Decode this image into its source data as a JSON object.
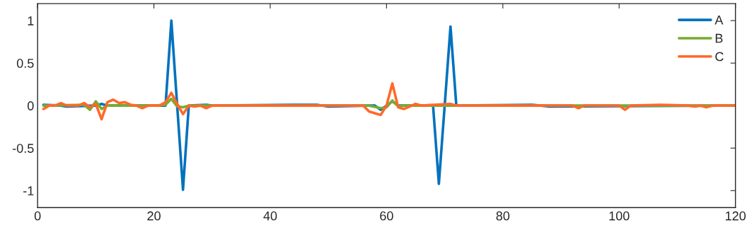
{
  "chart_data": {
    "type": "line",
    "xlim": [
      0,
      120
    ],
    "ylim": [
      -1.2,
      1.2
    ],
    "xticks": [
      0,
      20,
      40,
      60,
      80,
      100,
      120
    ],
    "yticks": [
      -1,
      -0.5,
      0,
      0.5,
      1
    ],
    "legend": "top right",
    "grid": false,
    "marker": "none",
    "line_style": "solid",
    "series": [
      {
        "name": "A",
        "color": "#0072bd",
        "x": [
          1,
          4,
          5,
          10,
          11,
          12,
          20,
          22,
          23,
          24,
          25,
          26,
          29,
          30,
          44,
          48,
          50,
          57,
          58,
          59,
          60,
          61,
          62,
          68,
          69,
          70,
          71,
          72,
          85,
          88,
          120
        ],
        "values": [
          0.01,
          0,
          -0.01,
          0,
          0.02,
          0,
          0,
          0,
          1,
          0,
          -0.99,
          0,
          0.01,
          0,
          0.01,
          0.01,
          -0.01,
          0,
          0,
          -0.05,
          0,
          0.05,
          0,
          0,
          -0.92,
          0,
          0.93,
          0,
          0.01,
          -0.01,
          0
        ]
      },
      {
        "name": "B",
        "color": "#77ac30",
        "x": [
          1,
          2,
          8,
          9,
          10,
          11,
          12,
          20,
          22,
          23,
          24,
          25,
          26,
          30,
          57,
          59,
          60,
          61,
          62,
          63,
          120
        ],
        "values": [
          0,
          0,
          0.01,
          -0.05,
          0.05,
          -0.04,
          0,
          0,
          0.01,
          0.08,
          -0.01,
          -0.02,
          0,
          0,
          0,
          -0.03,
          -0.02,
          0.06,
          -0.01,
          0,
          0
        ]
      },
      {
        "name": "C",
        "color": "#ff6929",
        "x": [
          1,
          2,
          3,
          4,
          5,
          6,
          7,
          8,
          9,
          10,
          11,
          12,
          13,
          14,
          15,
          16,
          17,
          18,
          19,
          20,
          21,
          22,
          23,
          24,
          25,
          26,
          27,
          28,
          29,
          30,
          56,
          57,
          58,
          59,
          60,
          61,
          62,
          63,
          64,
          65,
          66,
          71,
          72,
          92,
          93,
          94,
          100,
          101,
          102,
          107,
          112,
          113,
          114,
          115,
          116,
          120
        ],
        "values": [
          -0.04,
          0,
          0,
          0.03,
          0,
          0,
          0,
          0.03,
          -0.02,
          0.02,
          -0.16,
          0.04,
          0.07,
          0.03,
          0.04,
          0.01,
          0,
          -0.03,
          0,
          0,
          0,
          0.04,
          0.15,
          0.02,
          -0.1,
          0,
          -0.01,
          0,
          -0.03,
          0,
          0,
          -0.07,
          -0.09,
          -0.11,
          0,
          0.26,
          -0.02,
          -0.04,
          -0.01,
          0.02,
          0,
          0.02,
          0,
          0,
          -0.03,
          0,
          0,
          -0.05,
          0,
          0.01,
          0,
          -0.01,
          0,
          -0.02,
          0,
          0
        ]
      }
    ]
  }
}
